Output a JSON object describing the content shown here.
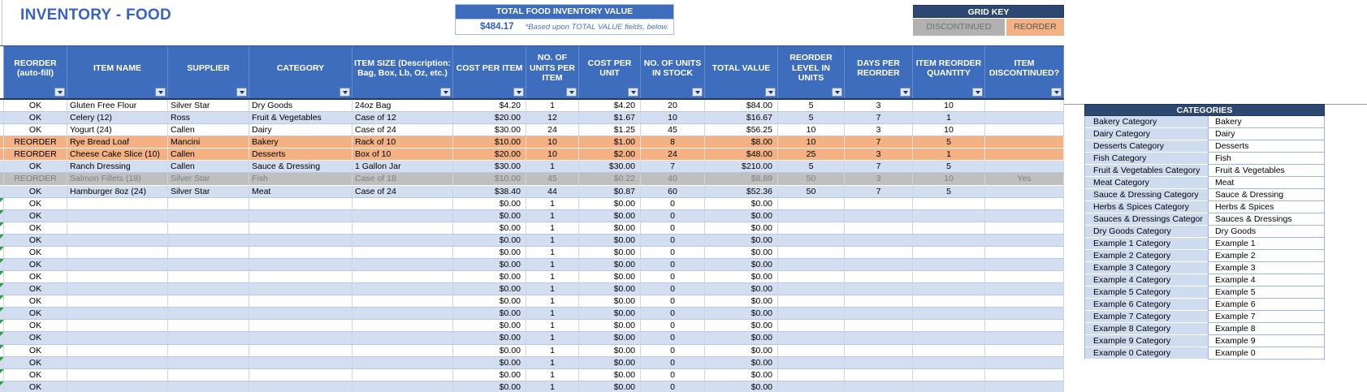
{
  "title": "INVENTORY - FOOD",
  "summary_box": {
    "header": "TOTAL FOOD INVENTORY VALUE",
    "value": "$484.17",
    "note": "*Based upon TOTAL VALUE fields, below."
  },
  "grid_key": {
    "header": "GRID KEY",
    "discontinued_label": "DISCONTINUED",
    "reorder_label": "REORDER"
  },
  "colors": {
    "header_blue": "#3e6dbe",
    "navy": "#2c4770",
    "stripe_blue": "#d4def1",
    "reorder_orange": "#f4b183",
    "discontinued_gray": "#bfbfbf",
    "title_blue": "#3a62c6",
    "error_flag_green": "#2f9e44"
  },
  "table": {
    "columns": [
      {
        "id": "reorder-status",
        "label": "REORDER (auto-fill)"
      },
      {
        "id": "item-name",
        "label": "ITEM NAME"
      },
      {
        "id": "supplier",
        "label": "SUPPLIER"
      },
      {
        "id": "category",
        "label": "CATEGORY"
      },
      {
        "id": "item-size",
        "label": "ITEM SIZE (Description: Bag, Box, Lb, Oz, etc.)"
      },
      {
        "id": "cost-per-item",
        "label": "COST PER ITEM"
      },
      {
        "id": "units-per-item",
        "label": "NO. OF UNITS PER ITEM"
      },
      {
        "id": "cost-per-unit",
        "label": "COST PER UNIT"
      },
      {
        "id": "units-in-stock",
        "label": "NO. OF UNITS IN STOCK"
      },
      {
        "id": "total-value",
        "label": "TOTAL VALUE"
      },
      {
        "id": "reorder-level",
        "label": "REORDER LEVEL IN UNITS"
      },
      {
        "id": "days-per-reorder",
        "label": "DAYS PER REORDER"
      },
      {
        "id": "reorder-quantity",
        "label": "ITEM REORDER QUANTITY"
      },
      {
        "id": "discontinued",
        "label": "ITEM DISCONTINUED?"
      }
    ],
    "rows": [
      {
        "style": "plain",
        "flag": false,
        "cells": [
          "OK",
          "Gluten Free Flour",
          "Silver Star",
          "Dry Goods",
          "24oz Bag",
          "$4.20",
          "1",
          "$4.20",
          "20",
          "$84.00",
          "5",
          "3",
          "10",
          ""
        ]
      },
      {
        "style": "stripe",
        "flag": false,
        "cells": [
          "OK",
          "Celery (12)",
          "Ross",
          "Fruit & Vegetables",
          "Case of 12",
          "$20.00",
          "12",
          "$1.67",
          "10",
          "$16.67",
          "5",
          "7",
          "1",
          ""
        ]
      },
      {
        "style": "plain",
        "flag": false,
        "cells": [
          "OK",
          "Yogurt (24)",
          "Callen",
          "Dairy",
          "Case of 24",
          "$30.00",
          "24",
          "$1.25",
          "45",
          "$56.25",
          "10",
          "3",
          "10",
          ""
        ]
      },
      {
        "style": "orange",
        "flag": false,
        "cells": [
          "REORDER",
          "Rye Bread Loaf",
          "Mancini",
          "Bakery",
          "Rack of 10",
          "$10.00",
          "10",
          "$1.00",
          "8",
          "$8.00",
          "10",
          "7",
          "5",
          ""
        ]
      },
      {
        "style": "orange",
        "flag": false,
        "cells": [
          "REORDER",
          "Cheese Cake Slice (10)",
          "Callen",
          "Desserts",
          "Box of 10",
          "$20.00",
          "10",
          "$2.00",
          "24",
          "$48.00",
          "25",
          "3",
          "1",
          ""
        ]
      },
      {
        "style": "stripe",
        "flag": false,
        "cells": [
          "OK",
          "Ranch Dressing",
          "Callen",
          "Sauce & Dressing",
          "1 Gallon Jar",
          "$30.00",
          "1",
          "$30.00",
          "7",
          "$210.00",
          "5",
          "7",
          "5",
          ""
        ]
      },
      {
        "style": "gray",
        "flag": false,
        "cells": [
          "REORDER",
          "Salmon Fillets (18)",
          "Silver Star",
          "Fish",
          "Case of 18",
          "$10.00",
          "45",
          "$0.22",
          "40",
          "$8.89",
          "50",
          "3",
          "10",
          "Yes"
        ]
      },
      {
        "style": "stripe",
        "flag": false,
        "cells": [
          "OK",
          "Hamburger 8oz (24)",
          "Silver Star",
          "Meat",
          "Case of 24",
          "$38.40",
          "44",
          "$0.87",
          "60",
          "$52.36",
          "50",
          "7",
          "5",
          ""
        ]
      },
      {
        "style": "plain",
        "flag": true,
        "cells": [
          "OK",
          "",
          "",
          "",
          "",
          "$0.00",
          "1",
          "$0.00",
          "0",
          "$0.00",
          "",
          "",
          "",
          ""
        ]
      },
      {
        "style": "stripe",
        "flag": true,
        "cells": [
          "OK",
          "",
          "",
          "",
          "",
          "$0.00",
          "1",
          "$0.00",
          "0",
          "$0.00",
          "",
          "",
          "",
          ""
        ]
      },
      {
        "style": "plain",
        "flag": true,
        "cells": [
          "OK",
          "",
          "",
          "",
          "",
          "$0.00",
          "1",
          "$0.00",
          "0",
          "$0.00",
          "",
          "",
          "",
          ""
        ]
      },
      {
        "style": "stripe",
        "flag": true,
        "cells": [
          "OK",
          "",
          "",
          "",
          "",
          "$0.00",
          "1",
          "$0.00",
          "0",
          "$0.00",
          "",
          "",
          "",
          ""
        ]
      },
      {
        "style": "plain",
        "flag": true,
        "cells": [
          "OK",
          "",
          "",
          "",
          "",
          "$0.00",
          "1",
          "$0.00",
          "0",
          "$0.00",
          "",
          "",
          "",
          ""
        ]
      },
      {
        "style": "stripe",
        "flag": true,
        "cells": [
          "OK",
          "",
          "",
          "",
          "",
          "$0.00",
          "1",
          "$0.00",
          "0",
          "$0.00",
          "",
          "",
          "",
          ""
        ]
      },
      {
        "style": "plain",
        "flag": true,
        "cells": [
          "OK",
          "",
          "",
          "",
          "",
          "$0.00",
          "1",
          "$0.00",
          "0",
          "$0.00",
          "",
          "",
          "",
          ""
        ]
      },
      {
        "style": "stripe",
        "flag": true,
        "cells": [
          "OK",
          "",
          "",
          "",
          "",
          "$0.00",
          "1",
          "$0.00",
          "0",
          "$0.00",
          "",
          "",
          "",
          ""
        ]
      },
      {
        "style": "plain",
        "flag": true,
        "cells": [
          "OK",
          "",
          "",
          "",
          "",
          "$0.00",
          "1",
          "$0.00",
          "0",
          "$0.00",
          "",
          "",
          "",
          ""
        ]
      },
      {
        "style": "stripe",
        "flag": true,
        "cells": [
          "OK",
          "",
          "",
          "",
          "",
          "$0.00",
          "1",
          "$0.00",
          "0",
          "$0.00",
          "",
          "",
          "",
          ""
        ]
      },
      {
        "style": "plain",
        "flag": true,
        "cells": [
          "OK",
          "",
          "",
          "",
          "",
          "$0.00",
          "1",
          "$0.00",
          "0",
          "$0.00",
          "",
          "",
          "",
          ""
        ]
      },
      {
        "style": "stripe",
        "flag": true,
        "cells": [
          "OK",
          "",
          "",
          "",
          "",
          "$0.00",
          "1",
          "$0.00",
          "0",
          "$0.00",
          "",
          "",
          "",
          ""
        ]
      },
      {
        "style": "plain",
        "flag": true,
        "cells": [
          "OK",
          "",
          "",
          "",
          "",
          "$0.00",
          "1",
          "$0.00",
          "0",
          "$0.00",
          "",
          "",
          "",
          ""
        ]
      },
      {
        "style": "stripe",
        "flag": true,
        "cells": [
          "OK",
          "",
          "",
          "",
          "",
          "$0.00",
          "1",
          "$0.00",
          "0",
          "$0.00",
          "",
          "",
          "",
          ""
        ]
      },
      {
        "style": "plain",
        "flag": true,
        "cells": [
          "OK",
          "",
          "",
          "",
          "",
          "$0.00",
          "1",
          "$0.00",
          "0",
          "$0.00",
          "",
          "",
          "",
          ""
        ]
      },
      {
        "style": "stripe",
        "flag": true,
        "cells": [
          "OK",
          "",
          "",
          "",
          "",
          "$0.00",
          "1",
          "$0.00",
          "0",
          "$0.00",
          "",
          "",
          "",
          ""
        ]
      }
    ]
  },
  "categories_panel": {
    "header": "CATEGORIES",
    "rows": [
      {
        "label": "Bakery Category",
        "value": "Bakery"
      },
      {
        "label": "Dairy Category",
        "value": "Dairy"
      },
      {
        "label": "Desserts Category",
        "value": "Desserts"
      },
      {
        "label": "Fish Category",
        "value": "Fish"
      },
      {
        "label": "Fruit & Vegetables Category",
        "value": "Fruit & Vegetables"
      },
      {
        "label": "Meat Category",
        "value": "Meat"
      },
      {
        "label": "Sauce & Dressing Category",
        "value": "Sauce & Dressing"
      },
      {
        "label": "Herbs & Spices Category",
        "value": "Herbs & Spices"
      },
      {
        "label": "Sauces & Dressings Categor",
        "value": "Sauces & Dressings"
      },
      {
        "label": "Dry Goods Category",
        "value": "Dry Goods"
      },
      {
        "label": "Example 1 Category",
        "value": "Example 1"
      },
      {
        "label": "Example 2 Category",
        "value": "Example 2"
      },
      {
        "label": "Example 3 Category",
        "value": "Example 3"
      },
      {
        "label": "Example 4 Category",
        "value": "Example 4"
      },
      {
        "label": "Example 5 Category",
        "value": "Example 5"
      },
      {
        "label": "Example 6 Category",
        "value": "Example 6"
      },
      {
        "label": "Example 7 Category",
        "value": "Example 7"
      },
      {
        "label": "Example 8 Category",
        "value": "Example 8"
      },
      {
        "label": "Example 9 Category",
        "value": "Example 9"
      },
      {
        "label": "Example 0 Category",
        "value": "Example 0"
      }
    ]
  }
}
